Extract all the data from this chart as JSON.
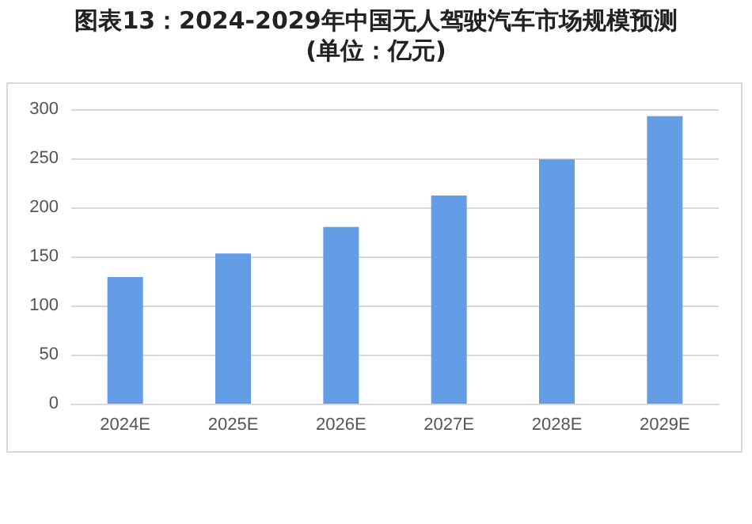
{
  "chart_data": {
    "type": "bar",
    "title": "图表13：2024-2029年中国无人驾驶汽车市场规模预测(单位：亿元)",
    "categories": [
      "2024E",
      "2025E",
      "2026E",
      "2027E",
      "2028E",
      "2029E"
    ],
    "values": [
      129,
      153,
      180,
      212,
      249,
      293
    ],
    "color": "#629de5",
    "ylim": [
      0,
      300
    ],
    "yticks": [
      0,
      50,
      100,
      150,
      200,
      250,
      300
    ],
    "grid": "y"
  }
}
